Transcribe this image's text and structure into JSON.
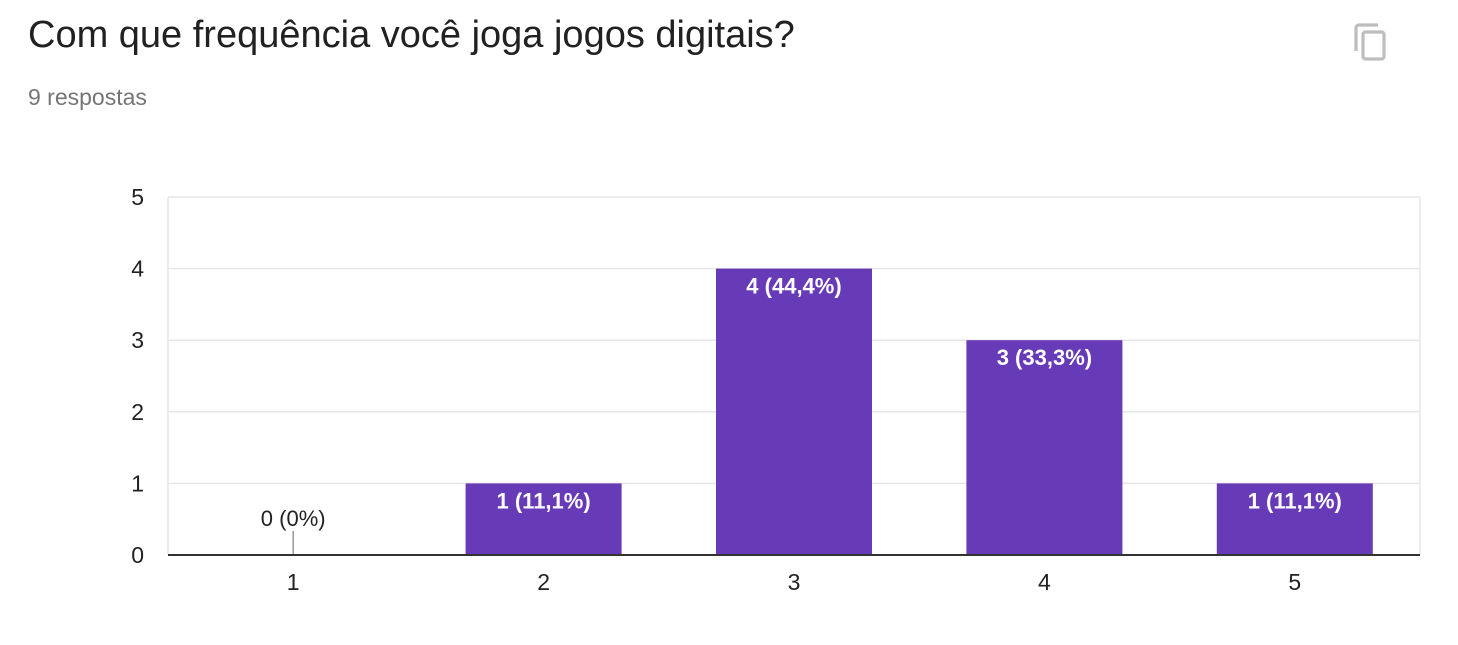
{
  "header": {
    "title": "Com que frequência você joga jogos digitais?",
    "subtitle": "9 respostas",
    "copy_icon": "copy-icon"
  },
  "colors": {
    "bar": "#673ab7",
    "grid": "#e6e6e6",
    "axis": "#333333",
    "tick_text": "#222222",
    "label_inside": "#ffffff",
    "label_outside": "#222222"
  },
  "chart_data": {
    "type": "bar",
    "categories": [
      "1",
      "2",
      "3",
      "4",
      "5"
    ],
    "values": [
      0,
      1,
      4,
      3,
      1
    ],
    "data_labels": [
      "0 (0%)",
      "1 (11,1%)",
      "4 (44,4%)",
      "3 (33,3%)",
      "1 (11,1%)"
    ],
    "y_ticks": [
      "0",
      "1",
      "2",
      "3",
      "4",
      "5"
    ],
    "ylim": [
      0,
      5
    ],
    "xlabel": "",
    "ylabel": "",
    "grid": true
  }
}
